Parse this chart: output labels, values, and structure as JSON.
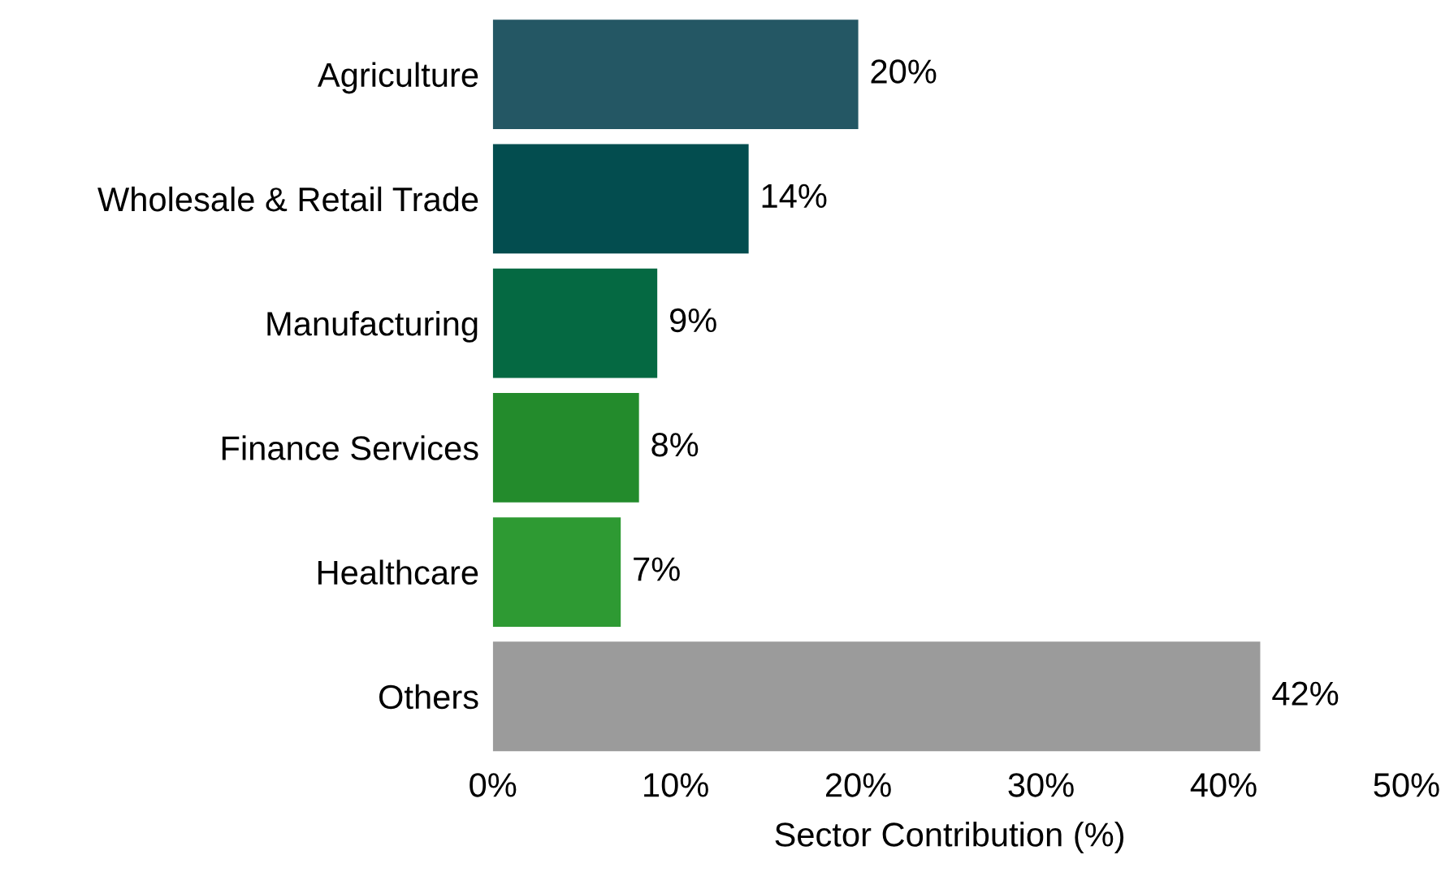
{
  "chart_data": {
    "type": "bar",
    "orientation": "horizontal",
    "xlabel": "Sector Contribution (%)",
    "categories": [
      "Agriculture",
      "Wholesale & Retail Trade",
      "Manufacturing",
      "Finance Services",
      "Healthcare",
      "Others"
    ],
    "values": [
      20,
      14,
      9,
      8,
      7,
      42
    ],
    "colors": [
      "#245764",
      "#034d4f",
      "#056942",
      "#238b2c",
      "#2e9a33",
      "#9b9b9b"
    ],
    "value_labels": [
      "20%",
      "14%",
      "9%",
      "8%",
      "7%",
      "42%"
    ],
    "xlim": [
      0,
      50
    ],
    "xticks": [
      {
        "value": 0,
        "label": "0%"
      },
      {
        "value": 10,
        "label": "10%"
      },
      {
        "value": 20,
        "label": "20%"
      },
      {
        "value": 30,
        "label": "30%"
      },
      {
        "value": 40,
        "label": "40%"
      },
      {
        "value": 50,
        "label": "50%"
      }
    ],
    "grid": false,
    "legend": false
  }
}
